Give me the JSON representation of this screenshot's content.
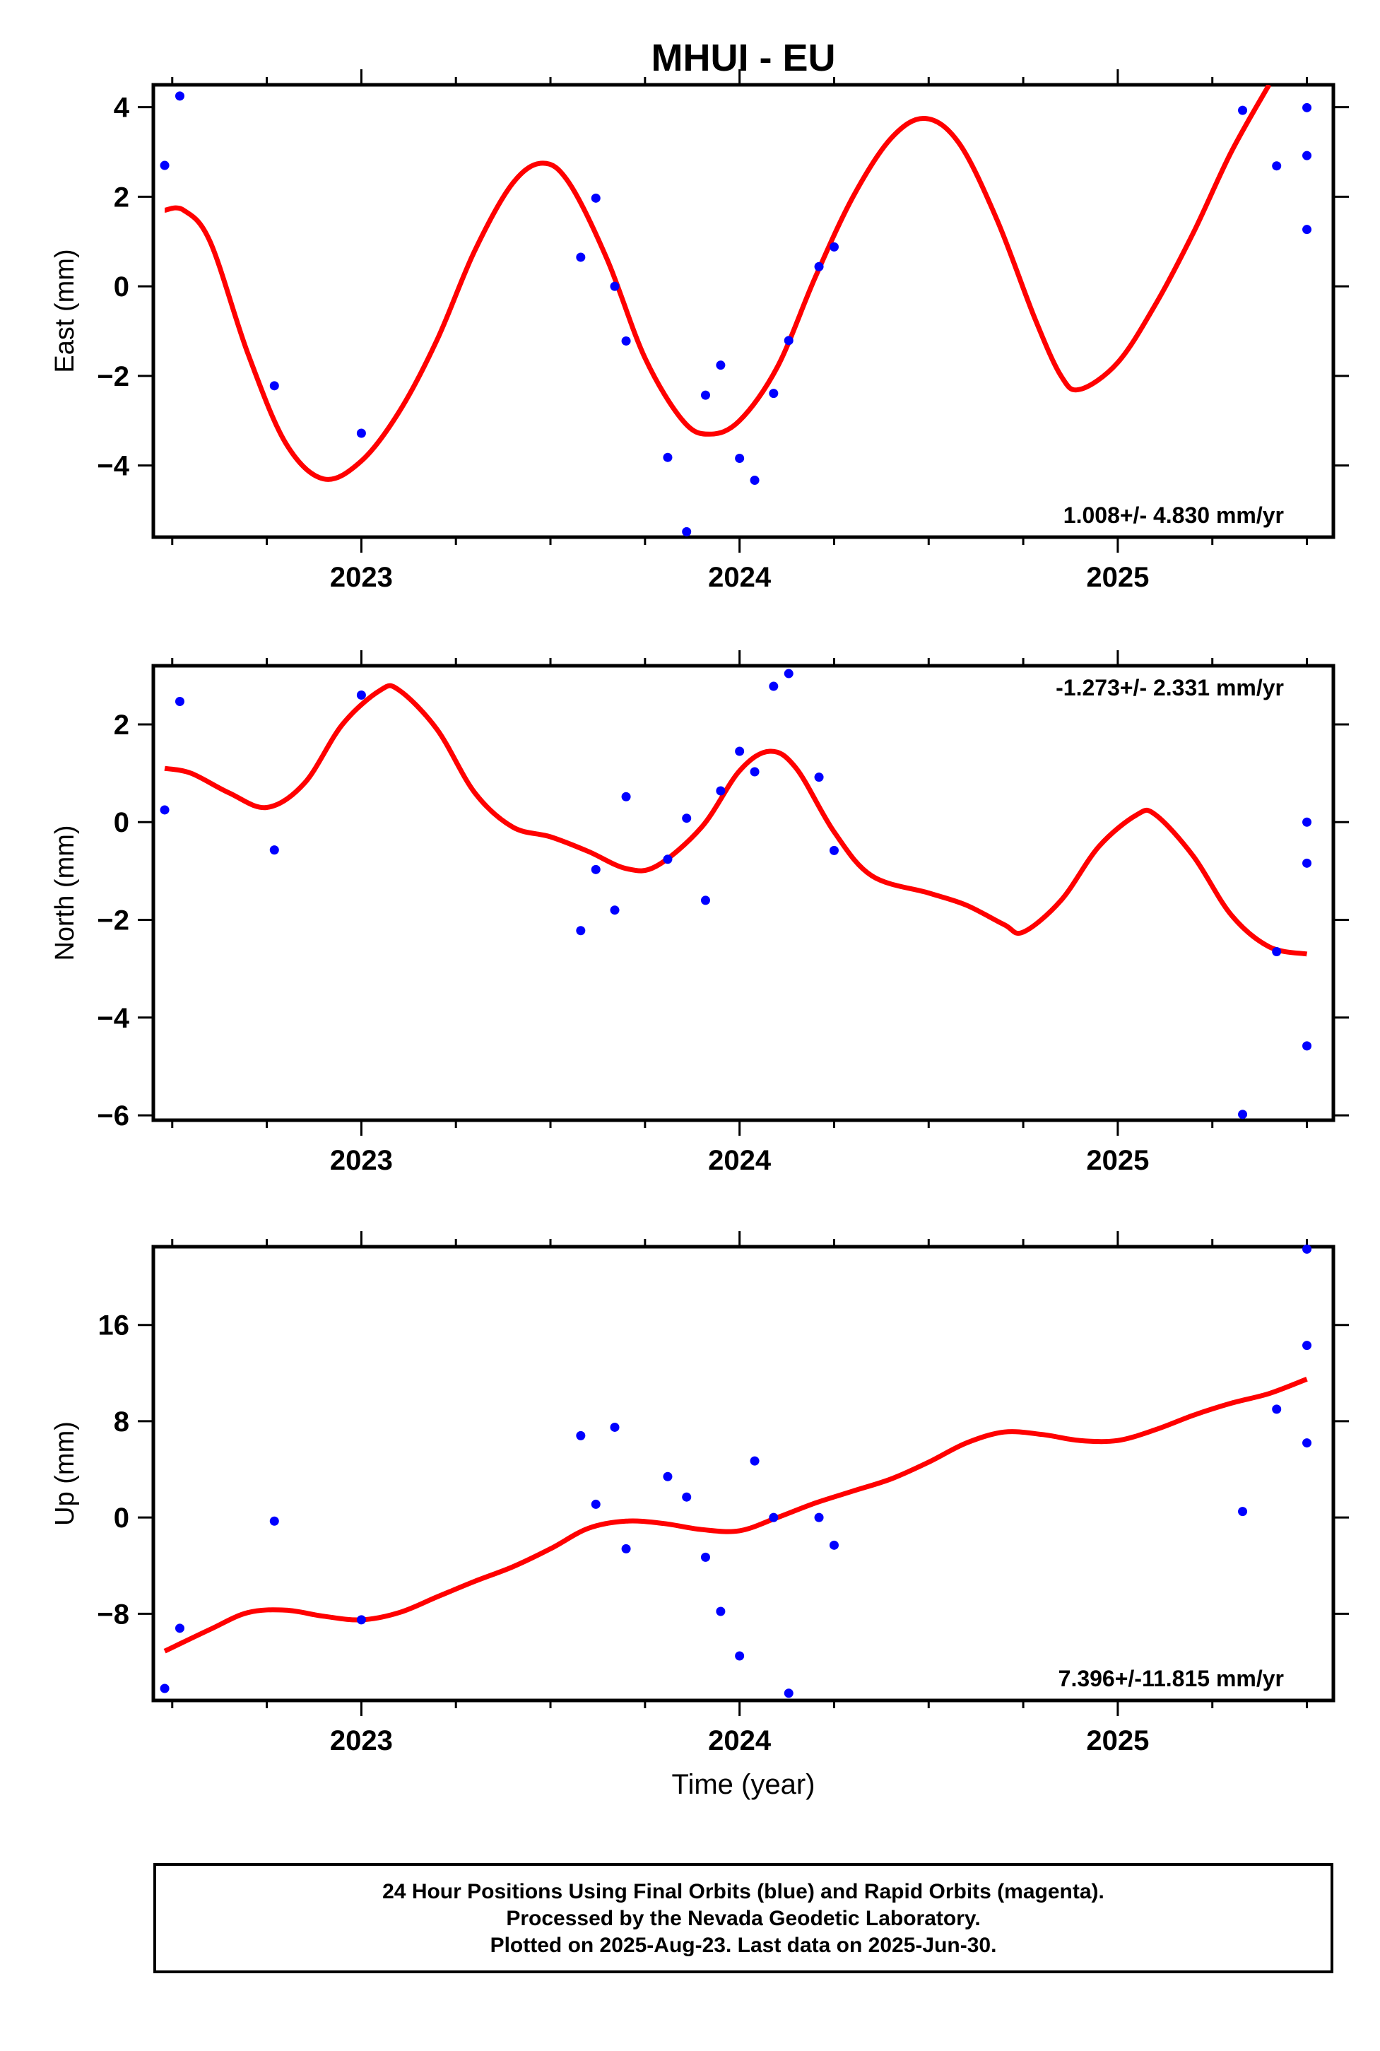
{
  "title": "MHUI - EU",
  "xlabel": "Time (year)",
  "colors": {
    "data": "#0000ff",
    "fit": "#ff0000",
    "frame": "#000000"
  },
  "caption": {
    "line1": "24 Hour Positions Using Final Orbits (blue) and Rapid Orbits (magenta).",
    "line2": "Processed by the Nevada Geodetic Laboratory.",
    "line3": "Plotted on 2025-Aug-23. Last data on 2025-Jun-30."
  },
  "chart_data": [
    {
      "type": "scatter",
      "ylabel": "East (mm)",
      "rate_label": "1.008+/- 4.830 mm/yr",
      "rate_position": "bottom-right",
      "xlim": [
        2022.45,
        2025.57
      ],
      "ylim": [
        -5.6,
        4.5
      ],
      "xticks": [
        2023,
        2024,
        2025
      ],
      "yticks": [
        -4,
        -2,
        0,
        2,
        4
      ],
      "ytick_labels": [
        "−4",
        "−2",
        "0",
        "2",
        "4"
      ],
      "points": [
        [
          2022.48,
          2.7
        ],
        [
          2022.52,
          4.25
        ],
        [
          2022.77,
          -2.22
        ],
        [
          2023.0,
          -3.28
        ],
        [
          2023.58,
          0.65
        ],
        [
          2023.62,
          1.97
        ],
        [
          2023.67,
          0.0
        ],
        [
          2023.7,
          -1.22
        ],
        [
          2023.81,
          -3.82
        ],
        [
          2023.86,
          -5.48
        ],
        [
          2023.91,
          -2.43
        ],
        [
          2023.95,
          -1.76
        ],
        [
          2024.0,
          -3.84
        ],
        [
          2024.04,
          -4.33
        ],
        [
          2024.09,
          -2.39
        ],
        [
          2024.13,
          -1.21
        ],
        [
          2024.21,
          0.44
        ],
        [
          2024.25,
          0.88
        ],
        [
          2025.33,
          3.93
        ],
        [
          2025.42,
          2.69
        ],
        [
          2025.5,
          3.99
        ],
        [
          2025.5,
          2.92
        ],
        [
          2025.5,
          1.27
        ]
      ],
      "fit": [
        [
          2022.48,
          1.7
        ],
        [
          2022.53,
          1.7
        ],
        [
          2022.6,
          1.0
        ],
        [
          2022.7,
          -1.5
        ],
        [
          2022.8,
          -3.5
        ],
        [
          2022.9,
          -4.3
        ],
        [
          2023.0,
          -3.9
        ],
        [
          2023.1,
          -2.8
        ],
        [
          2023.2,
          -1.2
        ],
        [
          2023.3,
          0.8
        ],
        [
          2023.4,
          2.3
        ],
        [
          2023.48,
          2.75
        ],
        [
          2023.55,
          2.3
        ],
        [
          2023.65,
          0.6
        ],
        [
          2023.75,
          -1.6
        ],
        [
          2023.85,
          -3.0
        ],
        [
          2023.92,
          -3.3
        ],
        [
          2024.0,
          -3.0
        ],
        [
          2024.1,
          -1.8
        ],
        [
          2024.2,
          0.2
        ],
        [
          2024.3,
          2.0
        ],
        [
          2024.4,
          3.3
        ],
        [
          2024.49,
          3.75
        ],
        [
          2024.58,
          3.2
        ],
        [
          2024.68,
          1.5
        ],
        [
          2024.78,
          -0.7
        ],
        [
          2024.85,
          -2.0
        ],
        [
          2024.9,
          -2.3
        ],
        [
          2025.0,
          -1.7
        ],
        [
          2025.1,
          -0.4
        ],
        [
          2025.2,
          1.2
        ],
        [
          2025.3,
          3.0
        ],
        [
          2025.4,
          4.5
        ]
      ]
    },
    {
      "type": "scatter",
      "ylabel": "North (mm)",
      "rate_label": "-1.273+/- 2.331 mm/yr",
      "rate_position": "top-right",
      "xlim": [
        2022.45,
        2025.57
      ],
      "ylim": [
        -6.1,
        3.2
      ],
      "xticks": [
        2023,
        2024,
        2025
      ],
      "yticks": [
        -6,
        -4,
        -2,
        0,
        2
      ],
      "ytick_labels": [
        "−6",
        "−4",
        "−2",
        "0",
        "2"
      ],
      "points": [
        [
          2022.48,
          0.25
        ],
        [
          2022.52,
          2.47
        ],
        [
          2022.77,
          -0.57
        ],
        [
          2023.0,
          2.6
        ],
        [
          2023.58,
          -2.22
        ],
        [
          2023.62,
          -0.97
        ],
        [
          2023.67,
          -1.8
        ],
        [
          2023.7,
          0.52
        ],
        [
          2023.81,
          -0.76
        ],
        [
          2023.86,
          0.08
        ],
        [
          2023.91,
          -1.6
        ],
        [
          2023.95,
          0.64
        ],
        [
          2024.0,
          1.45
        ],
        [
          2024.04,
          1.03
        ],
        [
          2024.09,
          2.78
        ],
        [
          2024.13,
          3.04
        ],
        [
          2024.21,
          0.92
        ],
        [
          2024.25,
          -0.58
        ],
        [
          2025.33,
          -5.98
        ],
        [
          2025.42,
          -2.65
        ],
        [
          2025.5,
          -4.58
        ],
        [
          2025.5,
          -0.84
        ],
        [
          2025.5,
          0.0
        ]
      ],
      "fit": [
        [
          2022.48,
          1.1
        ],
        [
          2022.55,
          1.0
        ],
        [
          2022.65,
          0.6
        ],
        [
          2022.75,
          0.3
        ],
        [
          2022.85,
          0.8
        ],
        [
          2022.95,
          2.0
        ],
        [
          2023.05,
          2.7
        ],
        [
          2023.1,
          2.7
        ],
        [
          2023.2,
          1.9
        ],
        [
          2023.3,
          0.6
        ],
        [
          2023.4,
          -0.1
        ],
        [
          2023.5,
          -0.3
        ],
        [
          2023.6,
          -0.6
        ],
        [
          2023.7,
          -0.95
        ],
        [
          2023.78,
          -0.9
        ],
        [
          2023.9,
          -0.1
        ],
        [
          2024.0,
          1.05
        ],
        [
          2024.08,
          1.45
        ],
        [
          2024.15,
          1.1
        ],
        [
          2024.25,
          -0.2
        ],
        [
          2024.35,
          -1.1
        ],
        [
          2024.5,
          -1.45
        ],
        [
          2024.6,
          -1.7
        ],
        [
          2024.7,
          -2.1
        ],
        [
          2024.75,
          -2.25
        ],
        [
          2024.85,
          -1.6
        ],
        [
          2024.95,
          -0.5
        ],
        [
          2025.05,
          0.15
        ],
        [
          2025.1,
          0.15
        ],
        [
          2025.2,
          -0.7
        ],
        [
          2025.3,
          -1.9
        ],
        [
          2025.4,
          -2.55
        ],
        [
          2025.5,
          -2.7
        ]
      ]
    },
    {
      "type": "scatter",
      "ylabel": "Up (mm)",
      "rate_label": "7.396+/-11.815 mm/yr",
      "rate_position": "bottom-right",
      "xlim": [
        2022.45,
        2025.57
      ],
      "ylim": [
        -15.2,
        22.5
      ],
      "xticks": [
        2023,
        2024,
        2025
      ],
      "yticks": [
        -8,
        0,
        8,
        16
      ],
      "ytick_labels": [
        "−8",
        "0",
        "8",
        "16"
      ],
      "points": [
        [
          2022.48,
          -14.2
        ],
        [
          2022.52,
          -9.2
        ],
        [
          2022.77,
          -0.3
        ],
        [
          2023.0,
          -8.5
        ],
        [
          2023.58,
          6.8
        ],
        [
          2023.62,
          1.1
        ],
        [
          2023.67,
          7.5
        ],
        [
          2023.7,
          -2.6
        ],
        [
          2023.81,
          3.4
        ],
        [
          2023.86,
          1.7
        ],
        [
          2023.91,
          -3.3
        ],
        [
          2023.95,
          -7.8
        ],
        [
          2024.0,
          -11.5
        ],
        [
          2024.04,
          4.7
        ],
        [
          2024.09,
          0.0
        ],
        [
          2024.13,
          -14.6
        ],
        [
          2024.21,
          0.0
        ],
        [
          2024.25,
          -2.3
        ],
        [
          2025.33,
          0.5
        ],
        [
          2025.42,
          9.0
        ],
        [
          2025.5,
          22.3
        ],
        [
          2025.5,
          14.3
        ],
        [
          2025.5,
          6.2
        ]
      ],
      "fit": [
        [
          2022.48,
          -11.1
        ],
        [
          2022.6,
          -9.3
        ],
        [
          2022.7,
          -7.9
        ],
        [
          2022.8,
          -7.7
        ],
        [
          2022.9,
          -8.2
        ],
        [
          2023.0,
          -8.5
        ],
        [
          2023.1,
          -7.9
        ],
        [
          2023.2,
          -6.6
        ],
        [
          2023.3,
          -5.3
        ],
        [
          2023.4,
          -4.1
        ],
        [
          2023.5,
          -2.6
        ],
        [
          2023.6,
          -0.9
        ],
        [
          2023.7,
          -0.3
        ],
        [
          2023.8,
          -0.5
        ],
        [
          2023.9,
          -1.0
        ],
        [
          2024.0,
          -1.1
        ],
        [
          2024.1,
          0.0
        ],
        [
          2024.2,
          1.2
        ],
        [
          2024.3,
          2.2
        ],
        [
          2024.4,
          3.2
        ],
        [
          2024.5,
          4.6
        ],
        [
          2024.6,
          6.2
        ],
        [
          2024.7,
          7.1
        ],
        [
          2024.8,
          6.9
        ],
        [
          2024.9,
          6.4
        ],
        [
          2025.0,
          6.4
        ],
        [
          2025.1,
          7.3
        ],
        [
          2025.2,
          8.5
        ],
        [
          2025.3,
          9.5
        ],
        [
          2025.4,
          10.3
        ],
        [
          2025.5,
          11.5
        ]
      ]
    }
  ]
}
